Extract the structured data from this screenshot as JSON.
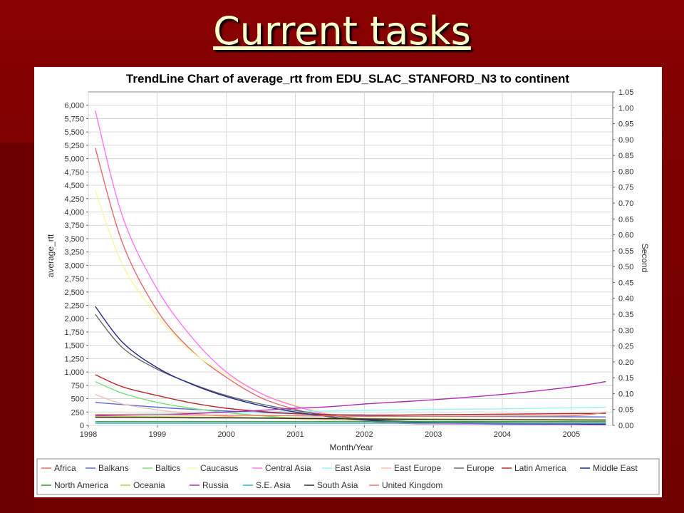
{
  "slide": {
    "title": "Current tasks"
  },
  "chart_data": {
    "type": "line",
    "title": "TrendLine Chart of average_rtt from EDU_SLAC_STANFORD_N3 to continent",
    "xlabel": "Month/Year",
    "ylabel": "average_rtt",
    "y2label": "Second",
    "xlim": [
      1998,
      2005.6
    ],
    "ylim": [
      0,
      6250
    ],
    "y2lim": [
      0,
      1.05
    ],
    "xticks": [
      "1998",
      "1999",
      "2000",
      "2001",
      "2002",
      "2003",
      "2004",
      "2005"
    ],
    "yticks": [
      "0",
      "250",
      "500",
      "750",
      "1,000",
      "1,250",
      "1,500",
      "1,750",
      "2,000",
      "2,250",
      "2,500",
      "2,750",
      "3,000",
      "3,250",
      "3,500",
      "3,750",
      "4,000",
      "4,250",
      "4,500",
      "4,750",
      "5,000",
      "5,250",
      "5,500",
      "5,750",
      "6,000"
    ],
    "y2ticks": [
      "0.00",
      "0.05",
      "0.10",
      "0.15",
      "0.20",
      "0.25",
      "0.30",
      "0.35",
      "0.40",
      "0.45",
      "0.50",
      "0.55",
      "0.60",
      "0.65",
      "0.70",
      "0.75",
      "0.80",
      "0.85",
      "0.90",
      "0.95",
      "1.00",
      "1.05"
    ],
    "grid": true,
    "legend_position": "bottom",
    "series": [
      {
        "name": "Africa",
        "color": "#e36a6a",
        "x": [
          1998.1,
          1998.5,
          1999,
          1999.5,
          2000,
          2000.5,
          2001,
          2001.5,
          2002,
          2002.5,
          2003,
          2004,
          2005,
          2005.5
        ],
        "y": [
          5200,
          3400,
          2150,
          1400,
          900,
          520,
          300,
          170,
          80,
          40,
          25,
          20,
          15,
          12
        ]
      },
      {
        "name": "Balkans",
        "color": "#5a6ad6",
        "x": [
          1998.1,
          1998.5,
          1999,
          1999.5,
          2000,
          2000.5,
          2001,
          2001.5,
          2002,
          2002.5,
          2003,
          2004,
          2005,
          2005.5
        ],
        "y": [
          430,
          390,
          340,
          300,
          270,
          240,
          220,
          200,
          185,
          175,
          170,
          165,
          160,
          158
        ]
      },
      {
        "name": "Baltics",
        "color": "#7ae07a",
        "x": [
          1998.1,
          1998.5,
          1999,
          1999.5,
          2000,
          2000.5,
          2001,
          2001.5,
          2002,
          2002.5,
          2003,
          2004,
          2005,
          2005.5
        ],
        "y": [
          820,
          600,
          430,
          320,
          240,
          180,
          140,
          110,
          90,
          80,
          75,
          70,
          65,
          62
        ]
      },
      {
        "name": "Caucasus",
        "color": "#f7f7a0",
        "x": [
          1998.1,
          1998.5,
          1999,
          1999.5,
          2000,
          2000.5,
          2001,
          2001.5,
          2002,
          2002.5,
          2003,
          2004,
          2005,
          2005.5
        ],
        "y": [
          4400,
          3000,
          2050,
          1380,
          950,
          600,
          380,
          220,
          110,
          60,
          40,
          30,
          25,
          22
        ]
      },
      {
        "name": "Central Asia",
        "color": "#ff77ff",
        "x": [
          1998.1,
          1998.5,
          1999,
          1999.5,
          2000,
          2000.5,
          2001,
          2001.5,
          2002,
          2002.5,
          2003,
          2004,
          2005,
          2005.5
        ],
        "y": [
          5900,
          3900,
          2550,
          1650,
          1000,
          600,
          360,
          200,
          100,
          50,
          30,
          20,
          15,
          12
        ]
      },
      {
        "name": "East Asia",
        "color": "#99f5f5",
        "x": [
          1998.1,
          1998.5,
          1999,
          1999.5,
          2000,
          2000.5,
          2001,
          2001.5,
          2002,
          2002.5,
          2003,
          2004,
          2005,
          2005.5
        ],
        "y": [
          200,
          210,
          220,
          230,
          240,
          250,
          260,
          270,
          280,
          290,
          300,
          310,
          330,
          340
        ]
      },
      {
        "name": "East Europe",
        "color": "#f5c0b0",
        "x": [
          1998.1,
          1998.5,
          1999,
          1999.5,
          2000,
          2000.5,
          2001,
          2001.5,
          2002,
          2002.5,
          2003,
          2004,
          2005,
          2005.5
        ],
        "y": [
          580,
          400,
          290,
          220,
          170,
          140,
          120,
          100,
          90,
          80,
          70,
          60,
          55,
          50
        ]
      },
      {
        "name": "Europe",
        "color": "#6a6a6a",
        "x": [
          1998.1,
          1998.5,
          1999,
          1999.5,
          2000,
          2000.5,
          2001,
          2001.5,
          2002,
          2002.5,
          2003,
          2004,
          2005,
          2005.5
        ],
        "y": [
          2080,
          1450,
          1050,
          780,
          560,
          400,
          280,
          190,
          120,
          80,
          60,
          45,
          35,
          30
        ]
      },
      {
        "name": "Latin America",
        "color": "#b52a2a",
        "x": [
          1998.1,
          1998.5,
          1999,
          1999.5,
          2000,
          2000.5,
          2001,
          2001.5,
          2002,
          2002.5,
          2003,
          2004,
          2005,
          2005.5
        ],
        "y": [
          950,
          720,
          560,
          420,
          320,
          260,
          220,
          200,
          195,
          195,
          200,
          210,
          220,
          225
        ]
      },
      {
        "name": "Middle East",
        "color": "#1f2a8a",
        "x": [
          1998.1,
          1998.5,
          1999,
          1999.5,
          2000,
          2000.5,
          2001,
          2001.5,
          2002,
          2002.5,
          2003,
          2004,
          2005,
          2005.5
        ],
        "y": [
          2230,
          1550,
          1080,
          770,
          540,
          370,
          250,
          160,
          100,
          65,
          45,
          30,
          25,
          20
        ]
      },
      {
        "name": "North America",
        "color": "#2aa02a",
        "x": [
          1998.1,
          1998.5,
          1999,
          1999.5,
          2000,
          2000.5,
          2001,
          2001.5,
          2002,
          2002.5,
          2003,
          2004,
          2005,
          2005.5
        ],
        "y": [
          70,
          70,
          70,
          70,
          70,
          70,
          70,
          70,
          70,
          70,
          70,
          70,
          70,
          70
        ]
      },
      {
        "name": "Oceania",
        "color": "#c8c840",
        "x": [
          1998.1,
          1998.5,
          1999,
          1999.5,
          2000,
          2000.5,
          2001,
          2001.5,
          2002,
          2002.5,
          2003,
          2004,
          2005,
          2005.5
        ],
        "y": [
          170,
          165,
          160,
          155,
          150,
          145,
          140,
          135,
          130,
          125,
          120,
          115,
          110,
          108
        ]
      },
      {
        "name": "Russia",
        "color": "#b02ab0",
        "x": [
          1998.1,
          1998.5,
          1999,
          1999.5,
          2000,
          2000.5,
          2001,
          2001.5,
          2002,
          2002.5,
          2003,
          2004,
          2005,
          2005.5
        ],
        "y": [
          180,
          190,
          200,
          220,
          250,
          280,
          320,
          350,
          400,
          440,
          480,
          580,
          720,
          820
        ]
      },
      {
        "name": "S.E. Asia",
        "color": "#3ab0d0",
        "x": [
          1998.1,
          1998.5,
          1999,
          1999.5,
          2000,
          2000.5,
          2001,
          2001.5,
          2002,
          2002.5,
          2003,
          2004,
          2005,
          2005.5
        ],
        "y": [
          40,
          40,
          40,
          40,
          40,
          40,
          40,
          40,
          40,
          40,
          40,
          40,
          40,
          40
        ]
      },
      {
        "name": "South Asia",
        "color": "#303030",
        "x": [
          1998.1,
          1998.5,
          1999,
          1999.5,
          2000,
          2000.5,
          2001,
          2001.5,
          2002,
          2002.5,
          2003,
          2004,
          2005,
          2005.5
        ],
        "y": [
          150,
          150,
          145,
          140,
          140,
          135,
          130,
          125,
          120,
          115,
          110,
          105,
          100,
          98
        ]
      },
      {
        "name": "United Kingdom",
        "color": "#e87a6a",
        "x": [
          1998.1,
          1998.5,
          1999,
          1999.5,
          2000,
          2000.5,
          2001,
          2001.5,
          2002,
          2002.5,
          2003,
          2004,
          2005,
          2005.5
        ],
        "y": [
          200,
          200,
          200,
          195,
          190,
          185,
          180,
          175,
          170,
          170,
          170,
          175,
          180,
          240
        ]
      }
    ]
  }
}
